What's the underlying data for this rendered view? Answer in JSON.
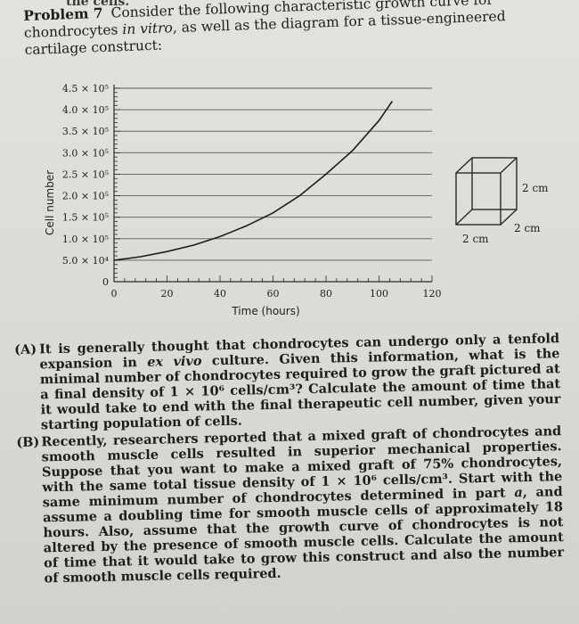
{
  "header_fragment": "the cells.",
  "problem": {
    "number": "Problem 7",
    "intro": "Consider the following characteristic growth curve for chondrocytes",
    "intro_italic": "in vitro",
    "intro_end": ", as well as the diagram for a tissue-engineered cartilage construct:"
  },
  "chart_data": {
    "type": "line",
    "xlabel": "Time (hours)",
    "ylabel": "Cell number",
    "xlim": [
      0,
      120
    ],
    "ylim": [
      0,
      450000
    ],
    "x_ticks": [
      "0",
      "20",
      "40",
      "60",
      "80",
      "100",
      "120"
    ],
    "y_ticks": [
      "0",
      "5.0 × 10⁴",
      "1.0 × 10⁵",
      "1.5 × 10⁵",
      "2.0 × 10⁵",
      "2.5 × 10⁵",
      "3.0 × 10⁵",
      "3.5 × 10⁵",
      "4.0 × 10⁵",
      "4.5 × 10⁵"
    ],
    "y_tick_values": [
      0,
      50000,
      100000,
      150000,
      200000,
      250000,
      300000,
      350000,
      400000,
      450000
    ],
    "grid": true,
    "series": [
      {
        "x": [
          0,
          10,
          20,
          30,
          40,
          50,
          60,
          70,
          80,
          90,
          100,
          105
        ],
        "y": [
          50000,
          58000,
          70000,
          85000,
          105000,
          130000,
          160000,
          200000,
          250000,
          305000,
          375000,
          420000
        ]
      }
    ]
  },
  "construct": {
    "height_label": "2 cm",
    "depth_label": "2 cm",
    "width_label": "2 cm"
  },
  "questions": [
    {
      "label": "(A)",
      "parts": [
        {
          "text": "It is generally thought that chondrocytes can undergo only a tenfold expansion in "
        },
        {
          "text": "ex vivo",
          "italic": true
        },
        {
          "text": " culture. Given this information, what is the minimal number of chondrocytes required to grow the graft pictured at a final density of 1 × 10⁶ cells/cm³? Calculate the amount of time that it would take to end with the final therapeutic cell number, given your starting population of cells."
        }
      ]
    },
    {
      "label": "(B)",
      "parts": [
        {
          "text": "Recently, researchers reported that a mixed graft of chondrocytes and smooth muscle cells resulted in superior mechanical properties. Suppose that you want to make a mixed graft of 75% chondrocytes, with the same total tissue density of 1 × 10⁶ cells/cm³. Start with the same minimum number of chondrocytes determined in part "
        },
        {
          "text": "a",
          "italic": true
        },
        {
          "text": ", and assume a doubling time for smooth muscle cells of approximately 18 hours. Also, assume that the growth curve of chondrocytes is not altered by the presence of smooth muscle cells. Calculate the amount of time that it would take to grow this construct and also the number of smooth muscle cells required."
        }
      ]
    }
  ]
}
